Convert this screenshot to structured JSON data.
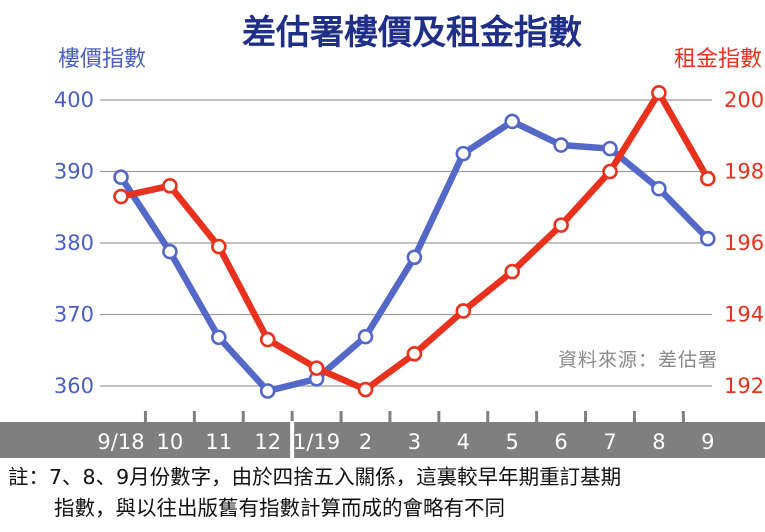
{
  "chart_data": {
    "type": "line",
    "title": "差估署樓價及租金指數",
    "x_axis": {
      "categories": [
        "9/18",
        "10",
        "11",
        "12",
        "1/19",
        "2",
        "3",
        "4",
        "5",
        "6",
        "7",
        "8",
        "9"
      ]
    },
    "y_left": {
      "label": "樓價指數",
      "ylim": [
        355,
        405
      ],
      "ticks": [
        360,
        370,
        380,
        390,
        400
      ]
    },
    "y_right": {
      "label": "租金指數",
      "ylim": [
        191,
        201
      ],
      "ticks": [
        192,
        194,
        196,
        198,
        200
      ]
    },
    "series": [
      {
        "name": "樓價指數",
        "axis": "left",
        "color": "#5468c8",
        "values": [
          389.2,
          378.8,
          366.8,
          359.3,
          361.0,
          366.9,
          378.0,
          392.5,
          397.0,
          393.7,
          393.2,
          387.6,
          380.6
        ]
      },
      {
        "name": "租金指數",
        "axis": "right",
        "color": "#e8321e",
        "values": [
          197.3,
          197.6,
          195.9,
          193.3,
          192.5,
          191.9,
          192.9,
          194.1,
          195.2,
          196.5,
          198.0,
          200.2,
          197.8
        ]
      }
    ],
    "source": "資料來源：差估署",
    "grid": true
  },
  "note": {
    "line1": "註：7、8、9月份數字，由於四捨五入關係，這裏較早年期重訂基期",
    "line2": "指數，與以往出版舊有指數計算而成的會略有不同"
  }
}
